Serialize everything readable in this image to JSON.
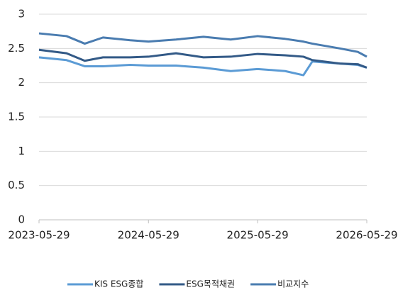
{
  "chart_data": {
    "type": "line",
    "x": [
      "2023-05-29",
      "2023-08-29",
      "2023-10-29",
      "2023-12-29",
      "2024-03-29",
      "2024-05-29",
      "2024-08-29",
      "2024-11-29",
      "2025-02-28",
      "2025-05-29",
      "2025-08-29",
      "2025-10-29",
      "2025-11-28",
      "2026-02-28",
      "2026-04-29",
      "2026-05-29"
    ],
    "series": [
      {
        "name": "KIS ESG종합",
        "color": "#5b9bd5",
        "values": [
          2.37,
          2.33,
          2.24,
          2.24,
          2.26,
          2.25,
          2.25,
          2.22,
          2.17,
          2.2,
          2.17,
          2.11,
          2.31,
          2.28,
          2.26,
          2.22
        ]
      },
      {
        "name": "ESG목적채권",
        "color": "#335a87",
        "values": [
          2.48,
          2.43,
          2.32,
          2.37,
          2.37,
          2.38,
          2.43,
          2.37,
          2.38,
          2.42,
          2.4,
          2.38,
          2.33,
          2.28,
          2.27,
          2.22
        ]
      },
      {
        "name": "비교지수",
        "color": "#4a7cb0",
        "values": [
          2.72,
          2.68,
          2.57,
          2.66,
          2.62,
          2.6,
          2.63,
          2.67,
          2.63,
          2.68,
          2.64,
          2.6,
          2.57,
          2.5,
          2.45,
          2.38
        ]
      }
    ],
    "xlim": [
      "2023-05-29",
      "2026-05-29"
    ],
    "xticks": [
      "2023-05-29",
      "2024-05-29",
      "2025-05-29",
      "2026-05-29"
    ],
    "ylim": [
      0,
      3
    ],
    "yticks": [
      0,
      0.5,
      1,
      1.5,
      2,
      2.5,
      3
    ],
    "grid": true,
    "legend": "bottom"
  }
}
